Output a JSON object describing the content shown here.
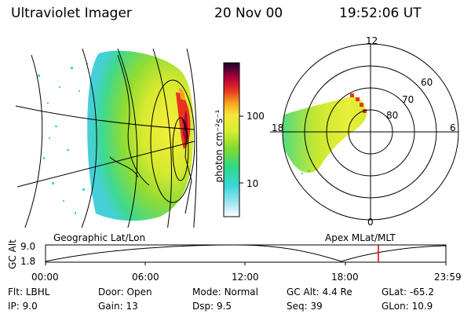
{
  "header": {
    "instrument": "Ultraviolet Imager",
    "date": "20 Nov 00",
    "time": "19:52:06 UT"
  },
  "colorbar": {
    "label": "photon cm⁻²s⁻¹",
    "ticks": [
      "100",
      "10"
    ],
    "scale": "log"
  },
  "polar": {
    "mlt_labels": {
      "top": "12",
      "right": "6",
      "bottom": "0",
      "left": "18"
    },
    "lat_labels": [
      "60",
      "70",
      "80"
    ]
  },
  "orbit": {
    "left_title": "Geographic Lat/Lon",
    "right_title": "Apex MLat/MLT",
    "y_axis_label": "GC Alt",
    "y_ticks": [
      "9.0",
      "1.8"
    ],
    "x_ticks": [
      "00:00",
      "06:00",
      "12:00",
      "18:00",
      "23:59"
    ],
    "current_time_marker": "19:52"
  },
  "status": {
    "flt_label": "Flt:",
    "flt_value": "LBHL",
    "ip_label": "IP:",
    "ip_value": "9.0",
    "door_label": "Door:",
    "door_value": "Open",
    "gain_label": "Gain:",
    "gain_value": "13",
    "mode_label": "Mode:",
    "mode_value": "Normal",
    "dsp_label": "Dsp:",
    "dsp_value": "9.5",
    "gcalt_label": "GC Alt:",
    "gcalt_value": "4.4 Re",
    "seq_label": "Seq:",
    "seq_value": "39",
    "glat_label": "GLat:",
    "glat_value": "-65.2",
    "glon_label": "GLon:",
    "glon_value": "10.9"
  },
  "colors": {
    "marker": "#e00000",
    "background": "#ffffff"
  }
}
